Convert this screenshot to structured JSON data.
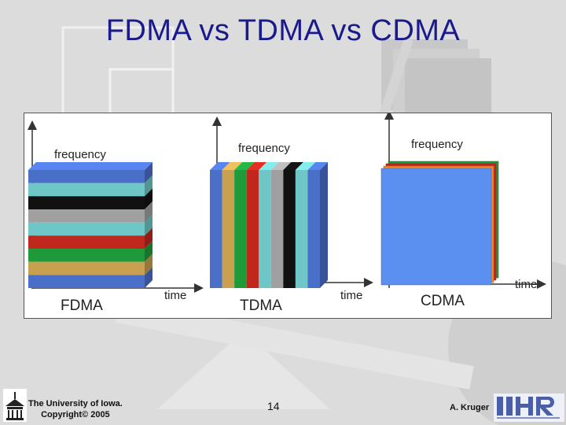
{
  "slide": {
    "title": "FDMA vs TDMA vs CDMA",
    "footer_left_line1": "The University of Iowa.",
    "footer_left_line2": "Copyright© 2005",
    "page_number": "14",
    "author": "A. Kruger"
  },
  "diagram": {
    "axis_y_label": "frequency",
    "axis_x_label": "time",
    "panels": {
      "fdma": {
        "label": "FDMA",
        "bands": [
          "#4a6fc9",
          "#6ec6c6",
          "#111111",
          "#a0a0a0",
          "#6ec6c6",
          "#c0281e",
          "#1e9a3a",
          "#c8a050",
          "#4a6fc9"
        ]
      },
      "tdma": {
        "label": "TDMA",
        "slots": [
          "#4a6fc9",
          "#c8a050",
          "#1e9a3a",
          "#c0281e",
          "#6ec6c6",
          "#a0a0a0",
          "#111111",
          "#6ec6c6",
          "#4a6fc9"
        ]
      },
      "cdma": {
        "label": "CDMA",
        "layers": [
          "#1e9a3a",
          "#c0281e",
          "#f08a1e",
          "#5b8ff0"
        ]
      }
    }
  }
}
